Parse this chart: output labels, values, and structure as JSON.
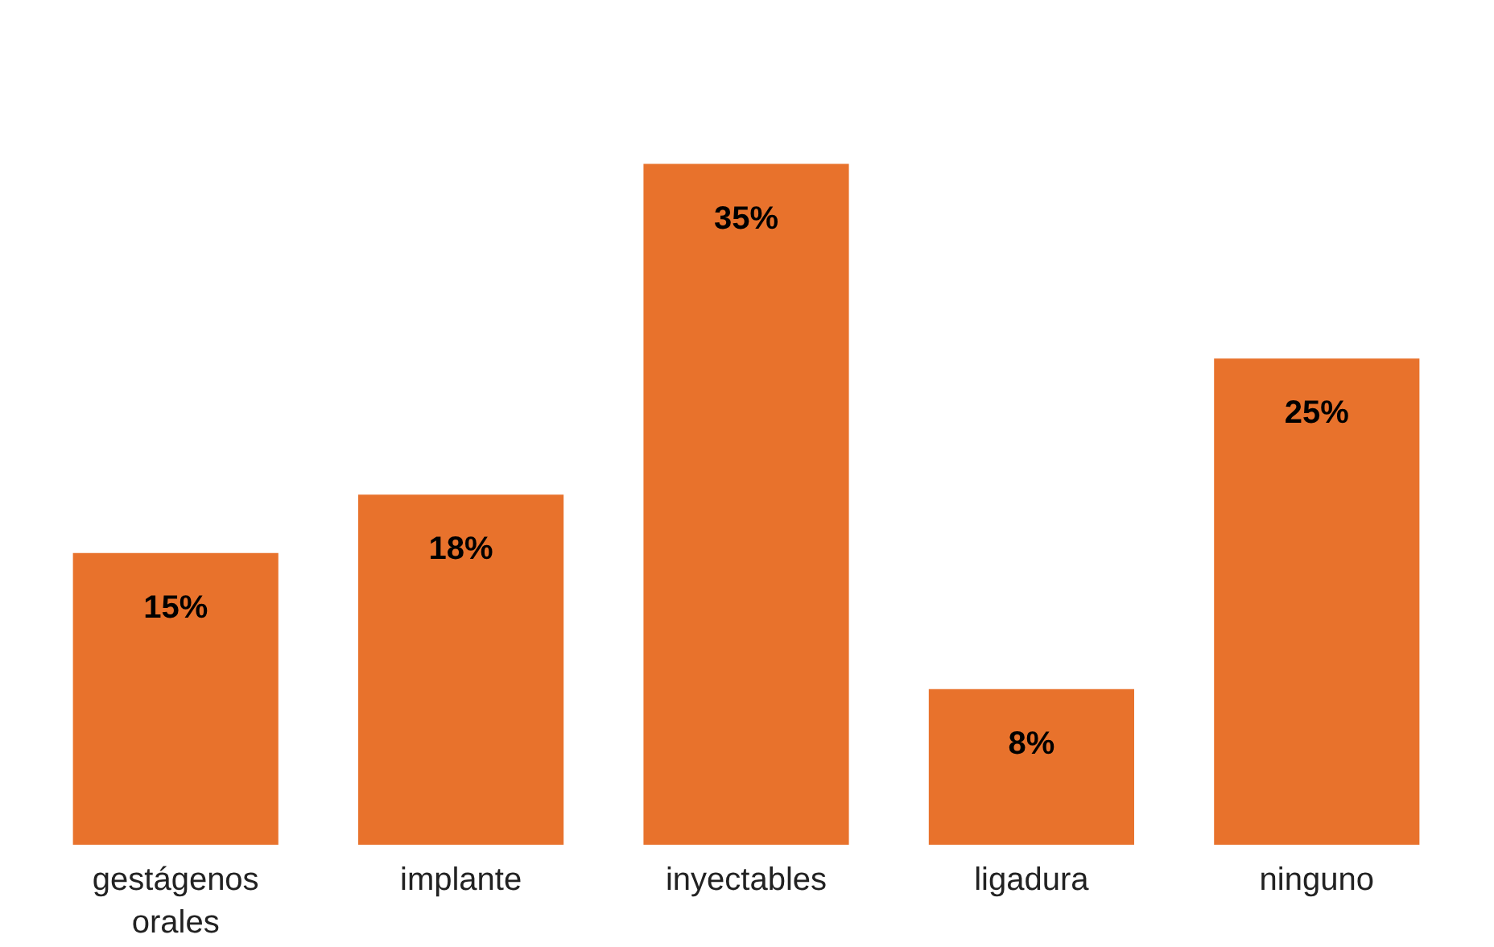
{
  "chart_data": {
    "type": "bar",
    "categories": [
      "gestágenos orales",
      "implante",
      "inyectables",
      "ligadura",
      "ninguno"
    ],
    "values": [
      15,
      18,
      35,
      8,
      25
    ],
    "value_labels": [
      "15%",
      "18%",
      "35%",
      "8%",
      "25%"
    ],
    "color": "#e8722c",
    "grid": false
  }
}
